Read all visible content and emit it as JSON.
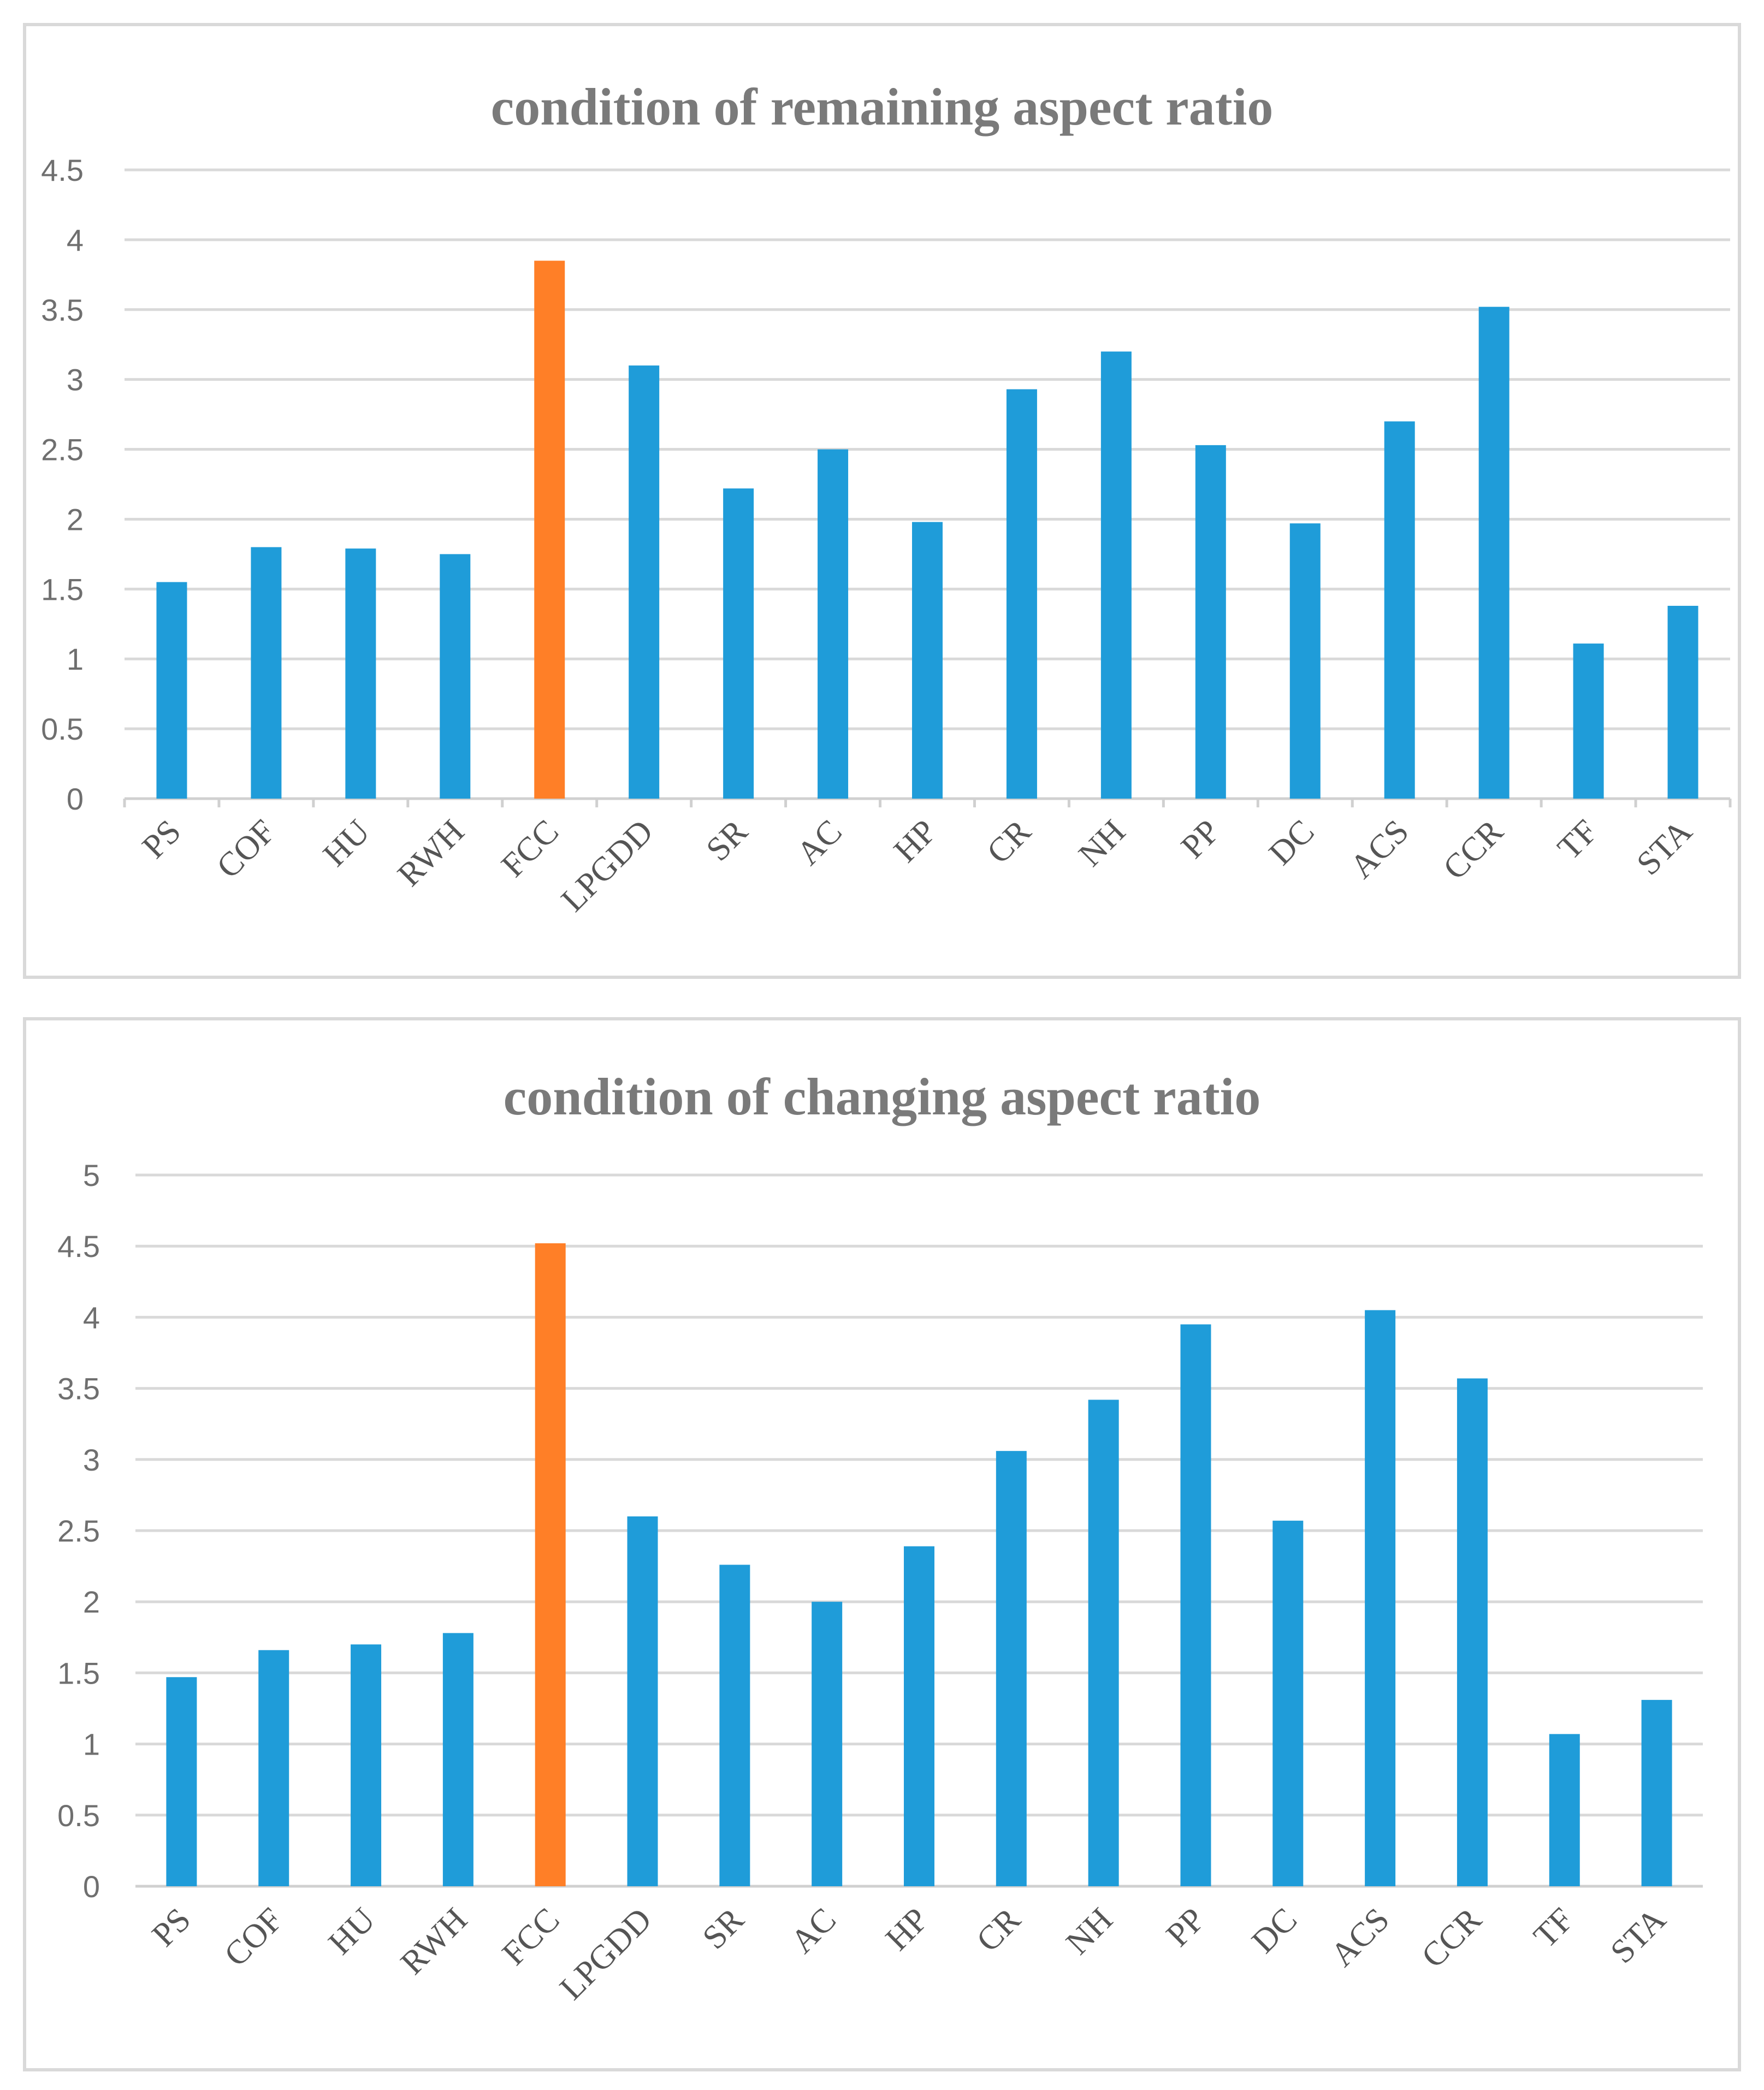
{
  "colors": {
    "default_bar": "#1f9cd9",
    "highlight_bar": "#ff7f27"
  },
  "chart_data": [
    {
      "type": "bar",
      "title": "condition of remaining aspect ratio",
      "xlabel": "",
      "ylabel": "",
      "ylim": [
        0,
        4.5
      ],
      "yticks": [
        "0",
        "0.5",
        "1",
        "1.5",
        "2",
        "2.5",
        "3",
        "3.5",
        "4",
        "4.5"
      ],
      "grid": true,
      "categories": [
        "PS",
        "COF",
        "HU",
        "RWH",
        "FCC",
        "LPGDD",
        "SR",
        "AC",
        "HP",
        "CR",
        "NH",
        "PP",
        "DC",
        "ACS",
        "CCR",
        "TF",
        "STA"
      ],
      "values": [
        1.55,
        1.8,
        1.79,
        1.75,
        3.85,
        3.1,
        2.22,
        2.5,
        1.98,
        2.93,
        3.2,
        2.53,
        1.97,
        2.7,
        3.52,
        1.11,
        1.38
      ],
      "highlight": "FCC"
    },
    {
      "type": "bar",
      "title": "condition of changing aspect ratio",
      "xlabel": "",
      "ylabel": "",
      "ylim": [
        0,
        5
      ],
      "yticks": [
        "0",
        "0.5",
        "1",
        "1.5",
        "2",
        "2.5",
        "3",
        "3.5",
        "4",
        "4.5",
        "5"
      ],
      "grid": true,
      "categories": [
        "PS",
        "COF",
        "HU",
        "RWH",
        "FCC",
        "LPGDD",
        "SR",
        "AC",
        "HP",
        "CR",
        "NH",
        "PP",
        "DC",
        "ACS",
        "CCR",
        "TF",
        "STA"
      ],
      "values": [
        1.47,
        1.66,
        1.7,
        1.78,
        4.52,
        2.6,
        2.26,
        2.0,
        2.39,
        3.06,
        3.42,
        3.95,
        2.57,
        4.05,
        3.57,
        1.07,
        1.31
      ],
      "highlight": "FCC"
    }
  ]
}
